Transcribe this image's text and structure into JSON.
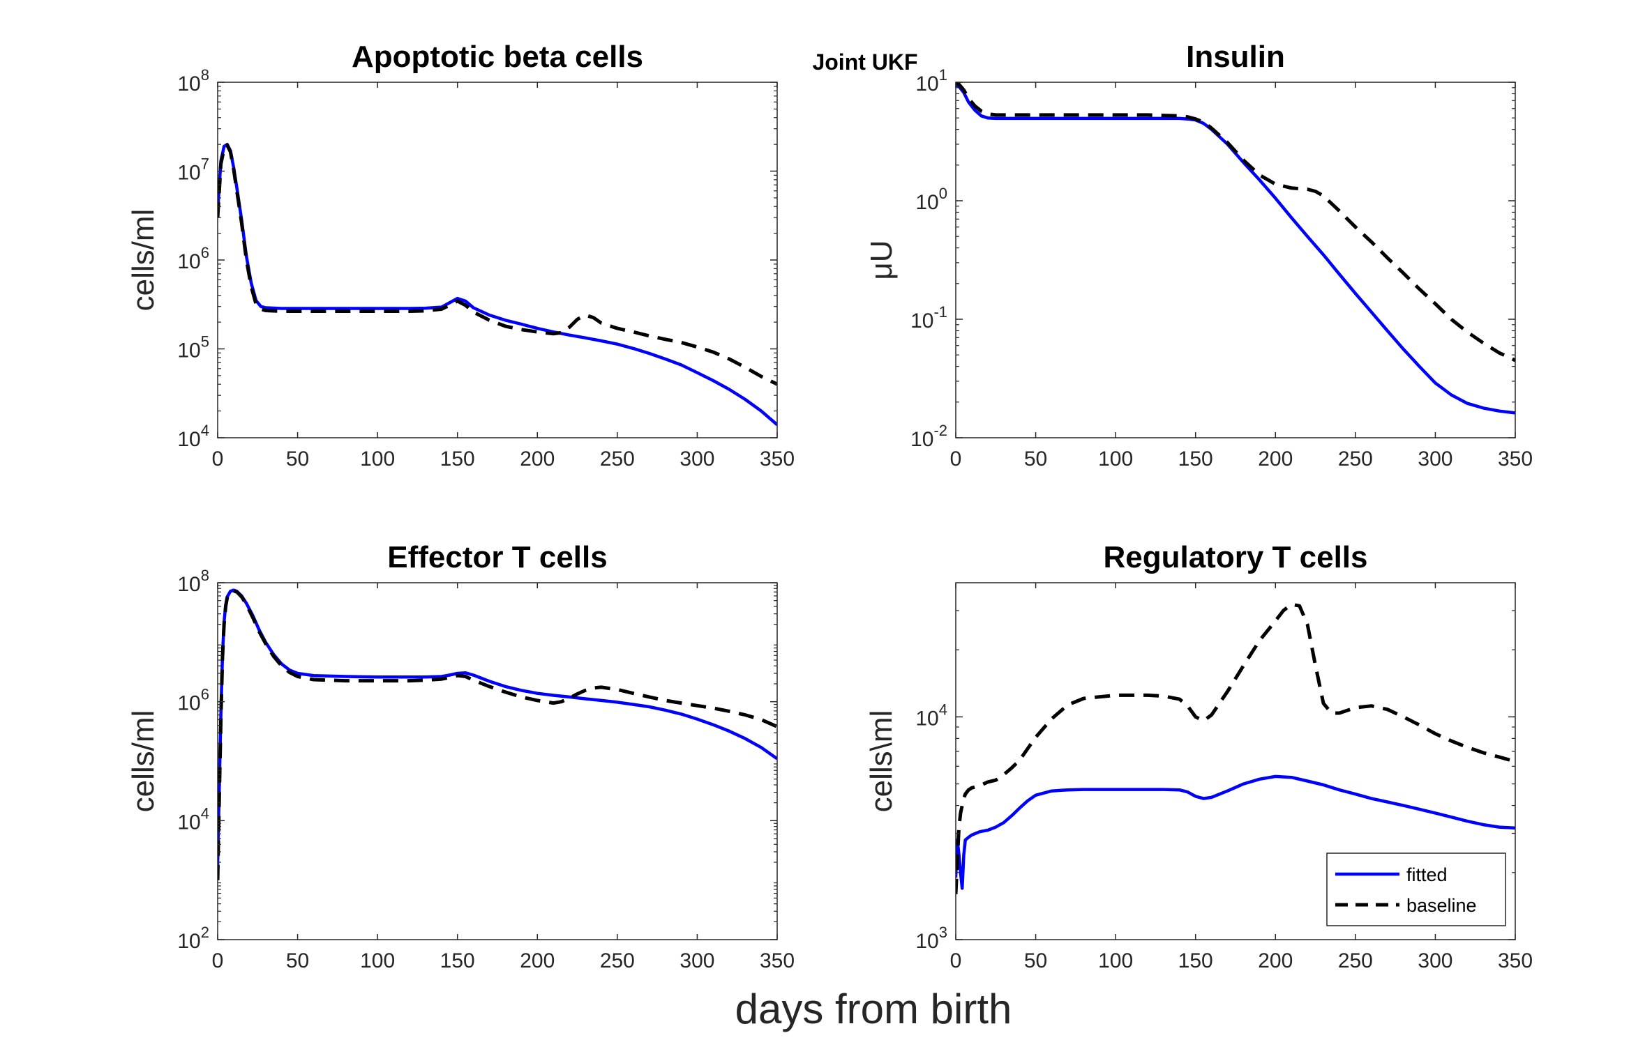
{
  "figure": {
    "suptitle": "Joint UKF",
    "xlabel": "days from birth"
  },
  "colors": {
    "fitted": "#0000ff",
    "baseline": "#000000"
  },
  "legend": {
    "placement": "bottom-right of Regulatory T cells panel",
    "entries": [
      "fitted",
      "baseline"
    ]
  },
  "chart_data": [
    {
      "type": "line",
      "title": "Apoptotic beta cells",
      "ylabel": "cells/ml",
      "yscale": "log",
      "xlim": [
        0,
        350
      ],
      "ylim": [
        10000,
        100000000
      ],
      "xticks": [
        0,
        50,
        100,
        150,
        200,
        250,
        300,
        350
      ],
      "yticks": [
        {
          "b": "10",
          "e": "4"
        },
        {
          "b": "10",
          "e": "5"
        },
        {
          "b": "10",
          "e": "6"
        },
        {
          "b": "10",
          "e": "7"
        },
        {
          "b": "10",
          "e": "8"
        }
      ],
      "series": [
        {
          "name": "fitted",
          "x": [
            0,
            2,
            4,
            6,
            8,
            10,
            12,
            15,
            18,
            21,
            24,
            27,
            30,
            40,
            60,
            80,
            100,
            120,
            130,
            140,
            145,
            150,
            155,
            160,
            170,
            180,
            190,
            200,
            210,
            220,
            230,
            240,
            250,
            260,
            270,
            280,
            290,
            300,
            310,
            320,
            330,
            340,
            350
          ],
          "y": [
            3500000,
            13000000,
            19000000,
            20000000,
            17000000,
            11000000,
            6500000,
            2800000,
            1100000,
            550000,
            350000,
            300000,
            290000,
            285000,
            285000,
            285000,
            285000,
            285000,
            287000,
            295000,
            330000,
            370000,
            345000,
            290000,
            240000,
            210000,
            190000,
            170000,
            155000,
            143000,
            133000,
            123000,
            113000,
            101000,
            89000,
            77000,
            66000,
            54000,
            44000,
            35000,
            27000,
            20000,
            14000
          ]
        },
        {
          "name": "baseline",
          "x": [
            0,
            2,
            4,
            6,
            8,
            10,
            12,
            15,
            18,
            21,
            24,
            27,
            30,
            40,
            60,
            80,
            100,
            120,
            130,
            140,
            145,
            150,
            155,
            160,
            170,
            180,
            190,
            200,
            210,
            215,
            220,
            225,
            230,
            235,
            240,
            250,
            260,
            270,
            280,
            290,
            300,
            310,
            320,
            330,
            340,
            350
          ],
          "y": [
            3000000,
            12000000,
            18000000,
            19500000,
            16500000,
            10500000,
            6000000,
            2600000,
            1000000,
            500000,
            320000,
            280000,
            270000,
            265000,
            265000,
            265000,
            265000,
            265000,
            268000,
            280000,
            310000,
            345000,
            310000,
            260000,
            210000,
            180000,
            165000,
            155000,
            148000,
            152000,
            175000,
            215000,
            240000,
            225000,
            195000,
            170000,
            155000,
            140000,
            128000,
            118000,
            105000,
            92000,
            77000,
            62000,
            49000,
            40000
          ]
        }
      ]
    },
    {
      "type": "line",
      "title": "Insulin",
      "ylabel": "μU",
      "yscale": "log",
      "xlim": [
        0,
        350
      ],
      "ylim": [
        0.01,
        10
      ],
      "xticks": [
        0,
        50,
        100,
        150,
        200,
        250,
        300,
        350
      ],
      "yticks": [
        {
          "b": "10",
          "e": "-2"
        },
        {
          "b": "10",
          "e": "-1"
        },
        {
          "b": "10",
          "e": "0"
        },
        {
          "b": "10",
          "e": "1"
        }
      ],
      "series": [
        {
          "name": "fitted",
          "x": [
            0,
            2,
            5,
            8,
            12,
            16,
            20,
            25,
            30,
            40,
            60,
            80,
            100,
            120,
            130,
            140,
            145,
            150,
            155,
            160,
            170,
            180,
            190,
            200,
            210,
            220,
            230,
            240,
            250,
            260,
            270,
            280,
            290,
            300,
            310,
            320,
            330,
            340,
            350
          ],
          "y": [
            9.5,
            9.2,
            8.2,
            6.8,
            5.8,
            5.2,
            5.0,
            4.95,
            4.95,
            4.95,
            4.95,
            4.95,
            4.95,
            4.95,
            4.95,
            4.95,
            4.9,
            4.8,
            4.5,
            4.0,
            3.0,
            2.1,
            1.5,
            1.05,
            0.72,
            0.5,
            0.35,
            0.24,
            0.165,
            0.115,
            0.08,
            0.056,
            0.04,
            0.029,
            0.023,
            0.0195,
            0.0178,
            0.0168,
            0.0162
          ]
        },
        {
          "name": "baseline",
          "x": [
            0,
            2,
            5,
            8,
            12,
            16,
            20,
            25,
            30,
            40,
            60,
            80,
            100,
            120,
            130,
            140,
            145,
            150,
            155,
            160,
            170,
            180,
            190,
            200,
            210,
            220,
            225,
            230,
            240,
            250,
            260,
            270,
            280,
            290,
            300,
            310,
            320,
            330,
            340,
            350
          ],
          "y": [
            10.0,
            9.6,
            8.6,
            7.3,
            6.3,
            5.7,
            5.4,
            5.3,
            5.3,
            5.3,
            5.3,
            5.3,
            5.3,
            5.3,
            5.25,
            5.2,
            5.1,
            4.9,
            4.6,
            4.1,
            3.1,
            2.2,
            1.65,
            1.38,
            1.28,
            1.25,
            1.2,
            1.1,
            0.82,
            0.6,
            0.45,
            0.33,
            0.245,
            0.18,
            0.135,
            0.1,
            0.078,
            0.063,
            0.052,
            0.045
          ]
        }
      ]
    },
    {
      "type": "line",
      "title": "Effector T cells",
      "ylabel": "cells/ml",
      "yscale": "log",
      "xlim": [
        0,
        350
      ],
      "ylim": [
        100,
        100000000
      ],
      "xticks": [
        0,
        50,
        100,
        150,
        200,
        250,
        300,
        350
      ],
      "yticks": [
        {
          "b": "10",
          "e": "2"
        },
        {
          "b": "10",
          "e": "4"
        },
        {
          "b": "10",
          "e": "6"
        },
        {
          "b": "10",
          "e": "8"
        }
      ],
      "series": [
        {
          "name": "fitted",
          "x": [
            0,
            1,
            2,
            3,
            4,
            5,
            6,
            8,
            10,
            12,
            15,
            18,
            22,
            26,
            30,
            35,
            40,
            45,
            50,
            60,
            80,
            100,
            120,
            130,
            140,
            145,
            150,
            155,
            160,
            170,
            180,
            190,
            200,
            210,
            220,
            230,
            240,
            250,
            260,
            270,
            280,
            290,
            300,
            310,
            320,
            330,
            340,
            350
          ],
          "y": [
            1800,
            35000,
            600000,
            6000000,
            22000000,
            42000000,
            58000000,
            72000000,
            75000000,
            72000000,
            60000000,
            45000000,
            28000000,
            16000000,
            10000000,
            6200000,
            4300000,
            3400000,
            3000000,
            2750000,
            2650000,
            2600000,
            2600000,
            2600000,
            2650000,
            2800000,
            3000000,
            3050000,
            2800000,
            2200000,
            1800000,
            1550000,
            1380000,
            1280000,
            1200000,
            1120000,
            1050000,
            980000,
            900000,
            820000,
            720000,
            620000,
            510000,
            410000,
            320000,
            240000,
            170000,
            110000
          ]
        },
        {
          "name": "baseline",
          "x": [
            0,
            1,
            2,
            3,
            4,
            5,
            6,
            8,
            10,
            12,
            15,
            18,
            22,
            26,
            30,
            35,
            40,
            45,
            50,
            60,
            80,
            100,
            120,
            130,
            140,
            145,
            150,
            155,
            160,
            170,
            180,
            190,
            200,
            210,
            215,
            220,
            225,
            230,
            235,
            240,
            250,
            260,
            270,
            280,
            290,
            300,
            310,
            320,
            330,
            340,
            350
          ],
          "y": [
            1000,
            25000,
            500000,
            5500000,
            20000000,
            40000000,
            56000000,
            70000000,
            73000000,
            70000000,
            58000000,
            43000000,
            26000000,
            15000000,
            9500000,
            5800000,
            4000000,
            3100000,
            2650000,
            2350000,
            2250000,
            2250000,
            2250000,
            2300000,
            2400000,
            2550000,
            2750000,
            2650000,
            2300000,
            1800000,
            1450000,
            1200000,
            1050000,
            950000,
            1000000,
            1150000,
            1350000,
            1550000,
            1700000,
            1750000,
            1600000,
            1380000,
            1200000,
            1050000,
            950000,
            860000,
            780000,
            690000,
            600000,
            500000,
            380000
          ]
        }
      ]
    },
    {
      "type": "line",
      "title": "Regulatory T cells",
      "ylabel": "cells\\ml",
      "yscale": "log",
      "xlim": [
        0,
        350
      ],
      "ylim": [
        1000,
        40000
      ],
      "xticks": [
        0,
        50,
        100,
        150,
        200,
        250,
        300,
        350
      ],
      "yticks": [
        {
          "b": "10",
          "e": "3"
        },
        {
          "b": "10",
          "e": "4"
        }
      ],
      "series": [
        {
          "name": "fitted",
          "x": [
            0,
            1,
            2,
            3,
            4,
            5,
            6,
            8,
            10,
            15,
            20,
            25,
            30,
            35,
            40,
            45,
            50,
            60,
            70,
            80,
            100,
            120,
            130,
            140,
            145,
            150,
            155,
            160,
            170,
            180,
            190,
            200,
            210,
            220,
            230,
            240,
            250,
            260,
            270,
            280,
            290,
            300,
            310,
            320,
            330,
            340,
            350
          ],
          "y": [
            1900,
            2800,
            2400,
            2000,
            1700,
            2400,
            2800,
            2880,
            2950,
            3050,
            3100,
            3200,
            3350,
            3600,
            3900,
            4200,
            4450,
            4650,
            4700,
            4720,
            4720,
            4720,
            4720,
            4700,
            4600,
            4400,
            4300,
            4350,
            4650,
            5000,
            5250,
            5400,
            5350,
            5150,
            4950,
            4700,
            4500,
            4300,
            4150,
            4000,
            3850,
            3700,
            3550,
            3400,
            3280,
            3200,
            3170
          ]
        },
        {
          "name": "baseline",
          "x": [
            0,
            1,
            2,
            3,
            4,
            5,
            6,
            8,
            10,
            15,
            20,
            25,
            30,
            35,
            40,
            45,
            50,
            60,
            70,
            80,
            100,
            120,
            130,
            140,
            145,
            150,
            155,
            160,
            170,
            180,
            190,
            200,
            205,
            210,
            215,
            220,
            225,
            230,
            235,
            240,
            250,
            260,
            270,
            280,
            290,
            300,
            310,
            320,
            330,
            340,
            350
          ],
          "y": [
            1600,
            2300,
            3200,
            3700,
            4000,
            4300,
            4500,
            4700,
            4800,
            4900,
            5100,
            5200,
            5500,
            5900,
            6400,
            7200,
            8100,
            9800,
            11300,
            12100,
            12500,
            12500,
            12400,
            12000,
            11200,
            10000,
            9600,
            10200,
            13000,
            17000,
            22000,
            27000,
            30000,
            32000,
            31500,
            26000,
            17000,
            11500,
            10400,
            10400,
            11000,
            11200,
            10800,
            10000,
            9200,
            8400,
            7800,
            7300,
            6900,
            6600,
            6300
          ]
        }
      ]
    }
  ]
}
